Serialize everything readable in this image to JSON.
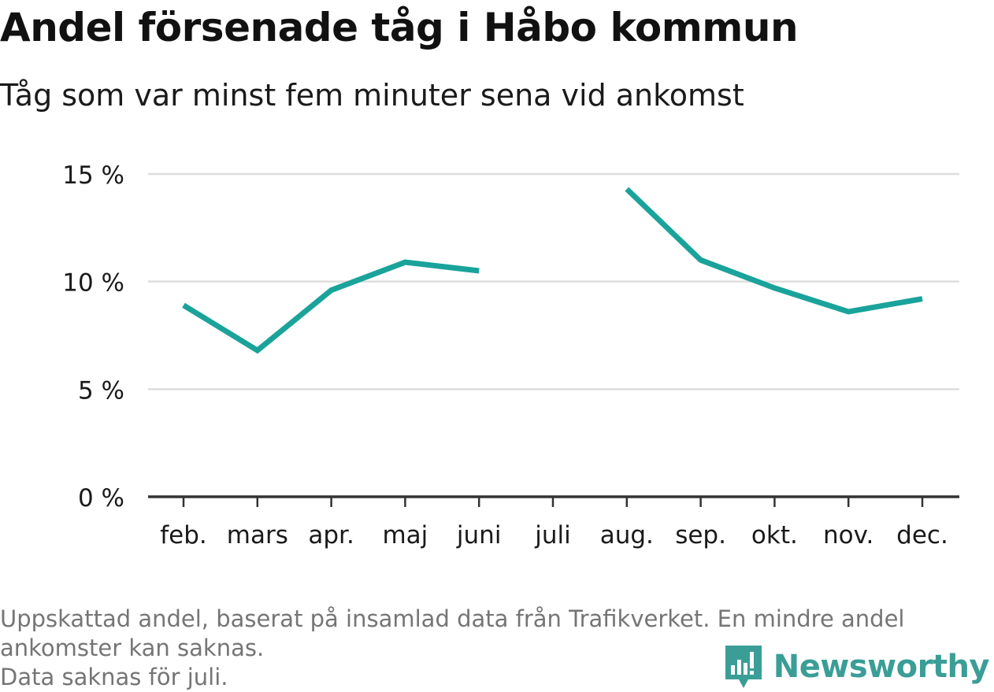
{
  "header": {
    "title": "Andel försenade tåg i Håbo kommun",
    "subtitle": "Tåg som var minst fem minuter sena vid ankomst"
  },
  "footer": {
    "note_line1": "Uppskattad andel, baserat på insamlad data från Trafikverket. En mindre andel",
    "note_line2": "ankomster kan saknas.",
    "note_line3": "Data saknas för juli."
  },
  "brand": {
    "name": "Newsworthy",
    "icon": "bar-chart-speech-bubble-icon",
    "color": "#3a9e97"
  },
  "colors": {
    "line": "#1aa39a",
    "grid": "#dddddd",
    "axis": "#333333",
    "text": "#1a1a1a",
    "footer_text": "#757575"
  },
  "chart_data": {
    "type": "line",
    "categories": [
      "feb.",
      "mars",
      "apr.",
      "maj",
      "juni",
      "juli",
      "aug.",
      "sep.",
      "okt.",
      "nov.",
      "dec."
    ],
    "series": [
      {
        "values": [
          8.9,
          6.8,
          9.6,
          10.9,
          10.5,
          null,
          14.3,
          11.0,
          9.7,
          8.6,
          9.2
        ]
      }
    ],
    "ylim": [
      0,
      15
    ],
    "yticks": [
      0,
      5,
      10,
      15
    ],
    "ytick_labels": [
      "0 %",
      "5 %",
      "10 %",
      "15 %"
    ],
    "xlabel": "",
    "ylabel": "",
    "grid": true
  }
}
